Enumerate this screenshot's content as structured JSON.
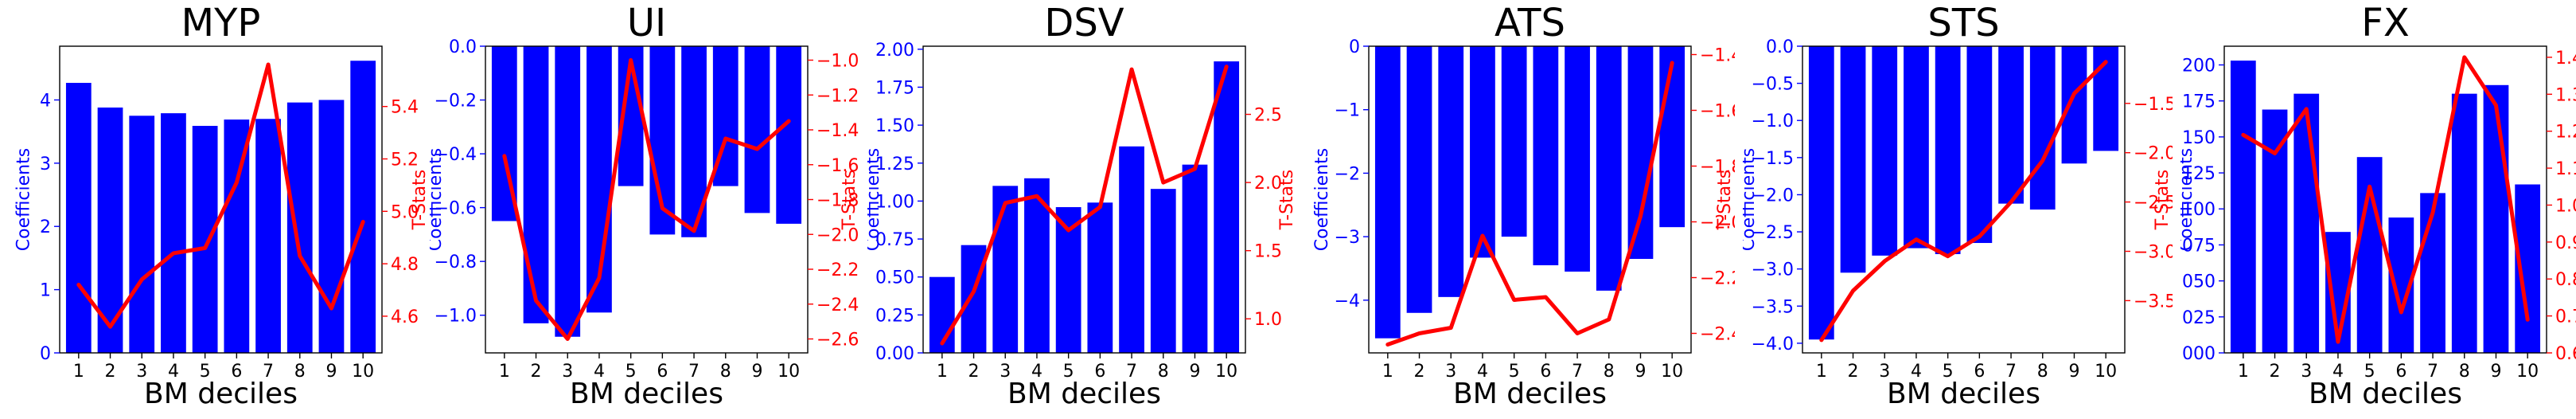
{
  "colors": {
    "bars": "#0000ff",
    "line": "#ff0000",
    "left_axis": "#0000ff",
    "right_axis": "#ff0000",
    "axes": "#000000"
  },
  "chart_data": [
    {
      "type": "bar",
      "title": "MYP",
      "xlabel": "BM deciles",
      "ylabel": "Coefficients",
      "y2label": "T-Stats",
      "categories": [
        "1",
        "2",
        "3",
        "4",
        "5",
        "6",
        "7",
        "8",
        "9",
        "10"
      ],
      "series": [
        {
          "values": [
            4.27,
            3.88,
            3.75,
            3.79,
            3.59,
            3.69,
            3.7,
            3.96,
            4.0,
            4.62
          ],
          "axis": "left",
          "kind": "bar"
        },
        {
          "values": [
            4.72,
            4.56,
            4.74,
            4.84,
            4.86,
            5.11,
            5.56,
            4.83,
            4.63,
            4.96
          ],
          "axis": "right",
          "kind": "line"
        }
      ],
      "ylim": [
        0,
        4.85
      ],
      "y2lim": [
        4.46,
        5.63
      ],
      "yticks": [
        0,
        1,
        2,
        3,
        4
      ],
      "yticklabels": [
        "0",
        "1",
        "2",
        "3",
        "4"
      ],
      "y2ticks": [
        4.6,
        4.8,
        5.0,
        5.2,
        5.4
      ],
      "y2ticklabels": [
        "4.6",
        "4.8",
        "5.0",
        "5.2",
        "5.4"
      ]
    },
    {
      "type": "bar",
      "title": "UI",
      "xlabel": "BM deciles",
      "ylabel": "Coefficients",
      "y2label": "T-Stats",
      "categories": [
        "1",
        "2",
        "3",
        "4",
        "5",
        "6",
        "7",
        "8",
        "9",
        "10"
      ],
      "series": [
        {
          "values": [
            -0.65,
            -1.03,
            -1.08,
            -0.99,
            -0.52,
            -0.7,
            -0.71,
            -0.52,
            -0.62,
            -0.66
          ],
          "axis": "left",
          "kind": "bar"
        },
        {
          "values": [
            -1.55,
            -2.38,
            -2.6,
            -2.25,
            -1.0,
            -1.85,
            -1.98,
            -1.45,
            -1.51,
            -1.35
          ],
          "axis": "right",
          "kind": "line"
        }
      ],
      "ylim": [
        -1.14,
        0
      ],
      "y2lim": [
        -2.68,
        -0.92
      ],
      "yticks": [
        0,
        -0.2,
        -0.4,
        -0.6,
        -0.8,
        -1.0
      ],
      "yticklabels": [
        "0.0",
        "−0.2",
        "−0.4",
        "−0.6",
        "−0.8",
        "−1.0"
      ],
      "y2ticks": [
        -1.0,
        -1.2,
        -1.4,
        -1.6,
        -1.8,
        -2.0,
        -2.2,
        -2.4,
        -2.6
      ],
      "y2ticklabels": [
        "−1.0",
        "−1.2",
        "−1.4",
        "−1.6",
        "−1.8",
        "−2.0",
        "−2.2",
        "−2.4",
        "−2.6"
      ]
    },
    {
      "type": "bar",
      "title": "DSV",
      "xlabel": "BM deciles",
      "ylabel": "Coefficients",
      "y2label": "T-Stats",
      "categories": [
        "1",
        "2",
        "3",
        "4",
        "5",
        "6",
        "7",
        "8",
        "9",
        "10"
      ],
      "series": [
        {
          "values": [
            0.5,
            0.71,
            1.1,
            1.15,
            0.96,
            0.99,
            1.36,
            1.08,
            1.24,
            1.92
          ],
          "axis": "left",
          "kind": "bar"
        },
        {
          "values": [
            0.82,
            1.2,
            1.85,
            1.9,
            1.65,
            1.82,
            2.83,
            2.0,
            2.1,
            2.85
          ],
          "axis": "right",
          "kind": "line"
        }
      ],
      "ylim": [
        0,
        2.02
      ],
      "y2lim": [
        0.75,
        3.0
      ],
      "yticks": [
        0,
        0.25,
        0.5,
        0.75,
        1.0,
        1.25,
        1.5,
        1.75,
        2.0
      ],
      "yticklabels": [
        "0.00",
        "0.25",
        "0.50",
        "0.75",
        "1.00",
        "1.25",
        "1.50",
        "1.75",
        "2.00"
      ],
      "y2ticks": [
        1.0,
        1.5,
        2.0,
        2.5
      ],
      "y2ticklabels": [
        "1.0",
        "1.5",
        "2.0",
        "2.5"
      ]
    },
    {
      "type": "bar",
      "title": "ATS",
      "xlabel": "BM deciles",
      "ylabel": "Coefficients",
      "y2label": "T-Stats",
      "categories": [
        "1",
        "2",
        "3",
        "4",
        "5",
        "6",
        "7",
        "8",
        "9",
        "10"
      ],
      "series": [
        {
          "values": [
            -4.6,
            -4.2,
            -3.95,
            -3.33,
            -3.0,
            -3.45,
            -3.55,
            -3.85,
            -3.35,
            -2.85
          ],
          "axis": "left",
          "kind": "bar"
        },
        {
          "values": [
            -2.44,
            -2.4,
            -2.38,
            -2.05,
            -2.28,
            -2.27,
            -2.4,
            -2.35,
            -1.98,
            -1.43
          ],
          "axis": "right",
          "kind": "line"
        }
      ],
      "ylim": [
        -4.83,
        0
      ],
      "y2lim": [
        -2.47,
        -1.37
      ],
      "yticks": [
        0,
        -1,
        -2,
        -3,
        -4
      ],
      "yticklabels": [
        "0",
        "−1",
        "−2",
        "−3",
        "−4"
      ],
      "y2ticks": [
        -1.4,
        -1.6,
        -1.8,
        -2.0,
        -2.2,
        -2.4
      ],
      "y2ticklabels": [
        "−1.4",
        "−1.6",
        "−1.8",
        "−2.0",
        "−2.2",
        "−2.4"
      ]
    },
    {
      "type": "bar",
      "title": "STS",
      "xlabel": "BM deciles",
      "ylabel": "Coefficients",
      "y2label": "T-Stats",
      "categories": [
        "1",
        "2",
        "3",
        "4",
        "5",
        "6",
        "7",
        "8",
        "9",
        "10"
      ],
      "series": [
        {
          "values": [
            -3.95,
            -3.05,
            -2.82,
            -2.72,
            -2.8,
            -2.65,
            -2.12,
            -2.2,
            -1.58,
            -1.41
          ],
          "axis": "left",
          "kind": "bar"
        },
        {
          "values": [
            -3.9,
            -3.4,
            -3.1,
            -2.88,
            -3.05,
            -2.85,
            -2.5,
            -2.08,
            -1.4,
            -1.08
          ],
          "axis": "right",
          "kind": "line"
        }
      ],
      "ylim": [
        -4.13,
        0
      ],
      "y2lim": [
        -4.03,
        -0.92
      ],
      "yticks": [
        0,
        -0.5,
        -1.0,
        -1.5,
        -2.0,
        -2.5,
        -3.0,
        -3.5,
        -4.0
      ],
      "yticklabels": [
        "0.0",
        "−0.5",
        "−1.0",
        "−1.5",
        "−2.0",
        "−2.5",
        "−3.0",
        "−3.5",
        "−4.0"
      ],
      "y2ticks": [
        -1.5,
        -2.0,
        -2.5,
        -3.0,
        -3.5
      ],
      "y2ticklabels": [
        "−1.5",
        "−2.0",
        "−2.5",
        "−3.0",
        "−3.5"
      ]
    },
    {
      "type": "bar",
      "title": "FX",
      "xlabel": "BM deciles",
      "ylabel": "Coefficients",
      "y2label": "T-Stats",
      "categories": [
        "1",
        "2",
        "3",
        "4",
        "5",
        "6",
        "7",
        "8",
        "9",
        "10"
      ],
      "series": [
        {
          "values": [
            0.203,
            0.169,
            0.18,
            0.084,
            0.136,
            0.094,
            0.111,
            0.18,
            0.186,
            0.117
          ],
          "axis": "left",
          "kind": "bar"
        },
        {
          "values": [
            1.19,
            1.14,
            1.26,
            0.63,
            1.05,
            0.71,
            0.98,
            1.4,
            1.27,
            0.69
          ],
          "axis": "right",
          "kind": "line"
        }
      ],
      "ylim": [
        0,
        0.213
      ],
      "y2lim": [
        0.6,
        1.43
      ],
      "yticks": [
        0,
        0.025,
        0.05,
        0.075,
        0.1,
        0.125,
        0.15,
        0.175,
        0.2
      ],
      "yticklabels": [
        "0.000",
        "0.025",
        "0.050",
        "0.075",
        "0.100",
        "0.125",
        "0.150",
        "0.175",
        "0.200"
      ],
      "y2ticks": [
        0.6,
        0.7,
        0.8,
        0.9,
        1.0,
        1.1,
        1.2,
        1.3,
        1.4
      ],
      "y2ticklabels": [
        "0.6",
        "0.7",
        "0.8",
        "0.9",
        "1.0",
        "1.1",
        "1.2",
        "1.3",
        "1.4"
      ]
    }
  ]
}
